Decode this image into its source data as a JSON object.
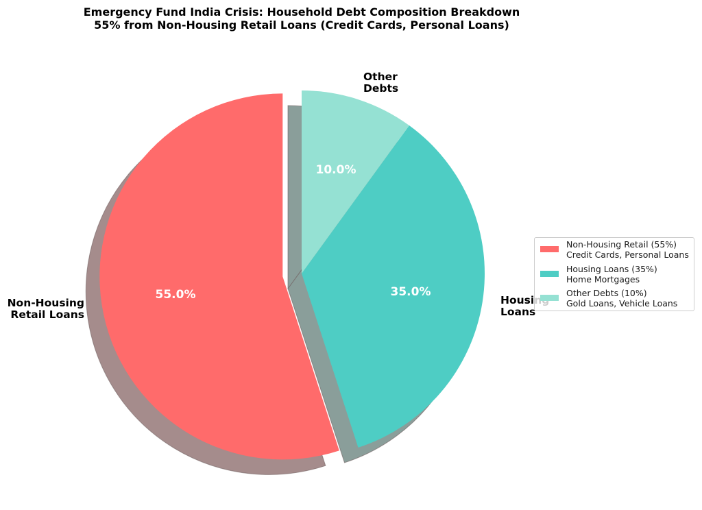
{
  "title": {
    "line1": "Emergency Fund India Crisis: Household Debt Composition Breakdown",
    "line2": "55% from Non-Housing Retail Loans (Credit Cards, Personal Loans)"
  },
  "slices": [
    {
      "label_line1": "Non-Housing",
      "label_line2": "Retail Loans",
      "pct": "55.0%",
      "color": "#FF6B6B"
    },
    {
      "label_line1": "Housing",
      "label_line2": "Loans",
      "pct": "35.0%",
      "color": "#4ECDC4"
    },
    {
      "label_line1": "Other",
      "label_line2": "Debts",
      "pct": "10.0%",
      "color": "#95E1D3"
    }
  ],
  "legend": [
    {
      "line1": "Non-Housing Retail (55%)",
      "line2": "Credit Cards, Personal Loans",
      "color": "#FF6B6B"
    },
    {
      "line1": "Housing Loans (35%)",
      "line2": "Home Mortgages",
      "color": "#4ECDC4"
    },
    {
      "line1": "Other Debts (10%)",
      "line2": "Gold Loans, Vehicle Loans",
      "color": "#95E1D3"
    }
  ],
  "chart_data": {
    "type": "pie",
    "title": "Emergency Fund India Crisis: Household Debt Composition Breakdown\n55% from Non-Housing Retail Loans (Credit Cards, Personal Loans)",
    "categories": [
      "Non-Housing Retail Loans",
      "Housing Loans",
      "Other Debts"
    ],
    "values": [
      55,
      35,
      10
    ],
    "value_labels": [
      "55.0%",
      "35.0%",
      "10.0%"
    ],
    "colors": [
      "#FF6B6B",
      "#4ECDC4",
      "#95E1D3"
    ],
    "explode": [
      0.1,
      0,
      0
    ],
    "shadow": true,
    "start_angle": 90,
    "legend_entries": [
      "Non-Housing Retail (55%)\nCredit Cards, Personal Loans",
      "Housing Loans (35%)\nHome Mortgages",
      "Other Debts (10%)\nGold Loans, Vehicle Loans"
    ],
    "legend_position": "center right"
  }
}
